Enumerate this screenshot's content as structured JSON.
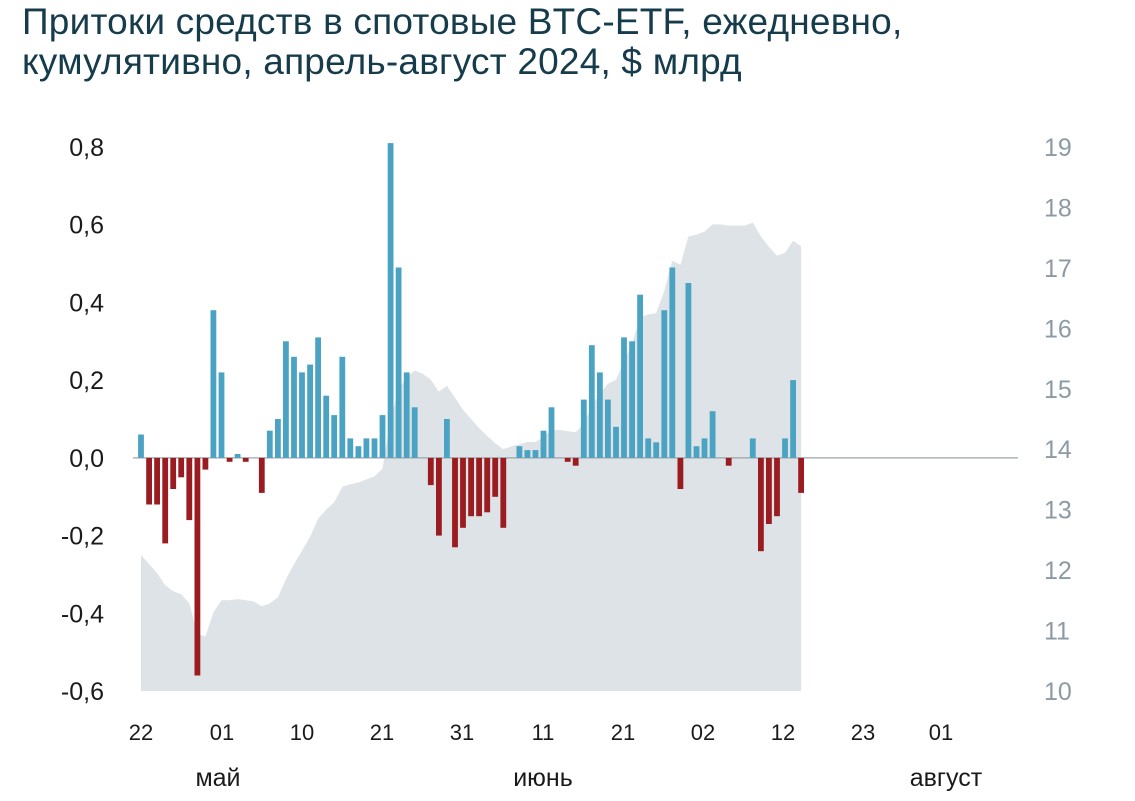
{
  "title_line1": "Притоки средств в спотовые BTC-ETF, ежедневно,",
  "title_line2": "кумулятивно, апрель-август 2024, $ млрд",
  "chart_data": {
    "type": "bar",
    "title": "Притоки средств в спотовые BTC-ETF, ежедневно, кумулятивно, апрель-август 2024, $ млрд",
    "left_axis": {
      "ylim": [
        -0.6,
        0.8
      ],
      "ticks": [
        0.8,
        0.6,
        0.4,
        0.2,
        0.0,
        -0.2,
        -0.4,
        -0.6
      ],
      "tick_labels": [
        "0,8",
        "0,6",
        "0,4",
        "0,2",
        "0,0",
        "-0,2",
        "-0,4",
        "-0,6"
      ]
    },
    "right_axis": {
      "ylim": [
        10,
        19
      ],
      "ticks": [
        19,
        18,
        17,
        16,
        15,
        14,
        13,
        12,
        11,
        10
      ],
      "tick_labels": [
        "19",
        "18",
        "17",
        "16",
        "15",
        "14",
        "13",
        "12",
        "11",
        "10"
      ]
    },
    "x_tick_labels": [
      "22",
      "01",
      "10",
      "21",
      "31",
      "11",
      "21",
      "02",
      "12",
      "23",
      "01"
    ],
    "month_labels": [
      "май",
      "июнь",
      "август"
    ],
    "grid": false,
    "colors": {
      "inflow": "#4ba3c3",
      "outflow": "#9b1c20",
      "cumulative_area": "#dde3e6",
      "title": "#163c4c"
    },
    "series": [
      {
        "kind": "bar",
        "axis": "left",
        "values": [
          0.06,
          -0.12,
          -0.12,
          -0.22,
          -0.08,
          -0.05,
          -0.16,
          -0.56,
          -0.03,
          0.38,
          0.22,
          -0.01,
          0.01,
          -0.01,
          0.0,
          -0.09,
          0.07,
          0.1,
          0.3,
          0.26,
          0.22,
          0.24,
          0.31,
          0.16,
          0.11,
          0.26,
          0.05,
          0.03,
          0.05,
          0.05,
          0.11,
          0.81,
          0.49,
          0.22,
          0.13,
          0.0,
          -0.07,
          -0.2,
          0.1,
          -0.23,
          -0.18,
          -0.15,
          -0.15,
          -0.14,
          -0.1,
          -0.18,
          0.0,
          0.03,
          0.02,
          0.02,
          0.07,
          0.13,
          0.0,
          -0.01,
          -0.02,
          0.15,
          0.29,
          0.22,
          0.15,
          0.08,
          0.31,
          0.3,
          0.42,
          0.05,
          0.04,
          0.38,
          0.49,
          -0.08,
          0.45,
          0.03,
          0.05,
          0.12,
          0.0,
          -0.02,
          0.0,
          0.0,
          0.05,
          -0.24,
          -0.17,
          -0.15,
          0.05,
          0.2,
          -0.09
        ]
      },
      {
        "kind": "area",
        "axis": "right",
        "values": [
          12.25,
          12.1,
          11.95,
          11.75,
          11.65,
          11.6,
          11.45,
          10.95,
          10.9,
          11.3,
          11.5,
          11.5,
          11.52,
          11.5,
          11.48,
          11.4,
          11.45,
          11.55,
          11.85,
          12.1,
          12.32,
          12.55,
          12.85,
          13.0,
          13.12,
          13.38,
          13.42,
          13.45,
          13.5,
          13.55,
          13.68,
          14.5,
          14.98,
          15.2,
          15.3,
          15.25,
          15.15,
          14.95,
          15.05,
          14.85,
          14.65,
          14.5,
          14.35,
          14.22,
          14.1,
          14.0,
          14.05,
          14.08,
          14.12,
          14.12,
          14.2,
          14.32,
          14.32,
          14.3,
          14.28,
          14.42,
          14.72,
          14.92,
          15.08,
          15.15,
          15.45,
          15.75,
          16.18,
          16.23,
          16.25,
          16.62,
          17.12,
          17.05,
          17.52,
          17.55,
          17.6,
          17.72,
          17.72,
          17.7,
          17.7,
          17.7,
          17.75,
          17.52,
          17.35,
          17.2,
          17.25,
          17.45,
          17.36
        ]
      }
    ]
  }
}
